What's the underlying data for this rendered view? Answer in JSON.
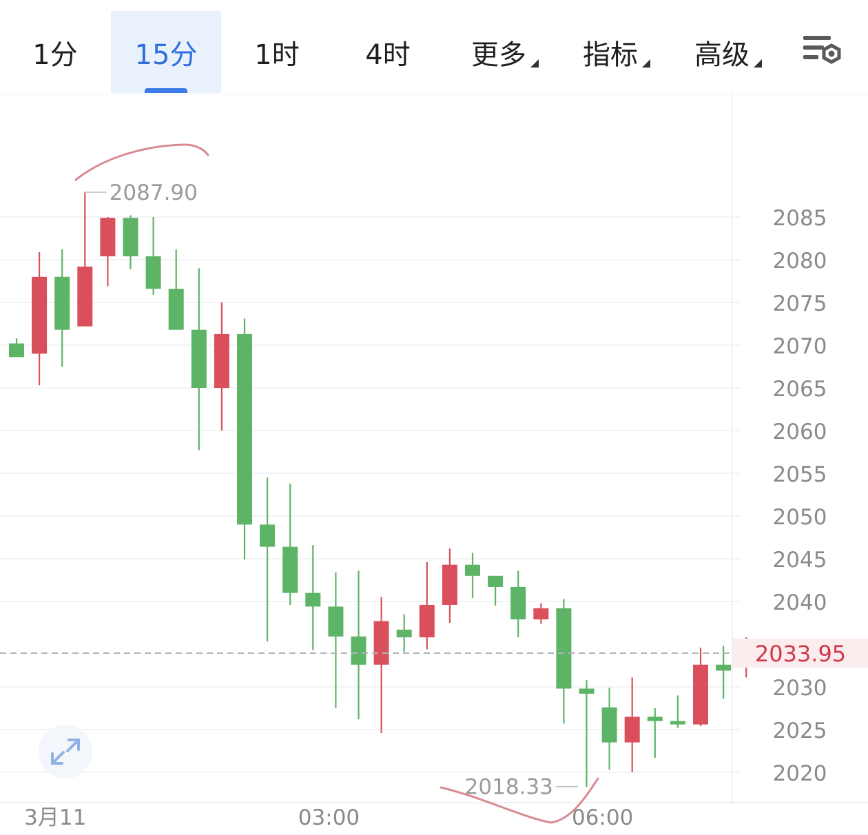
{
  "tabs": [
    {
      "label": "1分",
      "active": false,
      "has_caret": false
    },
    {
      "label": "15分",
      "active": true,
      "has_caret": false
    },
    {
      "label": "1时",
      "active": false,
      "has_caret": false
    },
    {
      "label": "4时",
      "active": false,
      "has_caret": false
    },
    {
      "label": "更多",
      "active": false,
      "has_caret": true
    },
    {
      "label": "指标",
      "active": false,
      "has_caret": true
    },
    {
      "label": "高级",
      "active": false,
      "has_caret": true
    }
  ],
  "settings_icon": "chart-settings-icon",
  "expand_icon": "expand-arrows-icon",
  "colors": {
    "up": "#d9505c",
    "down": "#5db466",
    "accent": "#2f6fdc",
    "last_price": "#d0394a",
    "annotation": "#d98a92"
  },
  "chart_data": {
    "type": "candlestick",
    "y_axis": {
      "ticks": [
        2085,
        2080,
        2075,
        2070,
        2065,
        2060,
        2055,
        2050,
        2045,
        2040,
        2030,
        2025,
        2020
      ],
      "range": [
        2016,
        2095
      ],
      "position": "right"
    },
    "x_axis": {
      "labels": [
        {
          "text": "3月11",
          "index": 1.7
        },
        {
          "text": "03:00",
          "index": 13.7
        },
        {
          "text": "06:00",
          "index": 25.7
        }
      ]
    },
    "last_price": {
      "value": 2033.95,
      "label": "2033.95"
    },
    "high_marker": {
      "value": 2087.9,
      "label": "2087.90",
      "index": 2.8
    },
    "low_marker": {
      "value": 2018.33,
      "label": "2018.33",
      "index": 24.8
    },
    "grid": true,
    "candles": [
      {
        "o": 2070.2,
        "h": 2070.8,
        "l": 2068.6,
        "c": 2068.6
      },
      {
        "o": 2069.0,
        "h": 2080.9,
        "l": 2065.3,
        "c": 2078.0
      },
      {
        "o": 2078.0,
        "h": 2081.2,
        "l": 2067.5,
        "c": 2071.8
      },
      {
        "o": 2072.2,
        "h": 2087.9,
        "l": 2072.2,
        "c": 2079.2
      },
      {
        "o": 2080.4,
        "h": 2085.0,
        "l": 2076.9,
        "c": 2084.9
      },
      {
        "o": 2084.9,
        "h": 2085.2,
        "l": 2078.9,
        "c": 2080.4
      },
      {
        "o": 2080.4,
        "h": 2085.0,
        "l": 2075.9,
        "c": 2076.6
      },
      {
        "o": 2076.6,
        "h": 2081.2,
        "l": 2071.8,
        "c": 2071.8
      },
      {
        "o": 2071.8,
        "h": 2079.0,
        "l": 2057.7,
        "c": 2065.0
      },
      {
        "o": 2065.0,
        "h": 2075.0,
        "l": 2060.0,
        "c": 2071.3
      },
      {
        "o": 2071.3,
        "h": 2073.1,
        "l": 2044.9,
        "c": 2049.0
      },
      {
        "o": 2049.0,
        "h": 2054.5,
        "l": 2035.3,
        "c": 2046.4
      },
      {
        "o": 2046.4,
        "h": 2053.8,
        "l": 2039.6,
        "c": 2041.0
      },
      {
        "o": 2041.0,
        "h": 2046.6,
        "l": 2034.3,
        "c": 2039.4
      },
      {
        "o": 2039.4,
        "h": 2043.4,
        "l": 2027.5,
        "c": 2035.9
      },
      {
        "o": 2035.9,
        "h": 2043.6,
        "l": 2026.2,
        "c": 2032.6
      },
      {
        "o": 2032.6,
        "h": 2040.5,
        "l": 2024.6,
        "c": 2037.7
      },
      {
        "o": 2036.7,
        "h": 2038.5,
        "l": 2034.1,
        "c": 2035.8
      },
      {
        "o": 2035.8,
        "h": 2044.6,
        "l": 2034.4,
        "c": 2039.6
      },
      {
        "o": 2039.6,
        "h": 2046.2,
        "l": 2037.5,
        "c": 2044.3
      },
      {
        "o": 2044.3,
        "h": 2045.7,
        "l": 2040.4,
        "c": 2043.0
      },
      {
        "o": 2043.0,
        "h": 2043.0,
        "l": 2039.5,
        "c": 2041.7
      },
      {
        "o": 2041.7,
        "h": 2043.6,
        "l": 2035.8,
        "c": 2037.9
      },
      {
        "o": 2037.9,
        "h": 2039.8,
        "l": 2037.4,
        "c": 2039.2
      },
      {
        "o": 2039.2,
        "h": 2040.3,
        "l": 2025.7,
        "c": 2029.8
      },
      {
        "o": 2029.8,
        "h": 2030.8,
        "l": 2018.3,
        "c": 2029.2
      },
      {
        "o": 2027.6,
        "h": 2029.9,
        "l": 2020.3,
        "c": 2023.5
      },
      {
        "o": 2023.5,
        "h": 2031.1,
        "l": 2020.0,
        "c": 2026.5
      },
      {
        "o": 2026.5,
        "h": 2027.5,
        "l": 2021.7,
        "c": 2026.0
      },
      {
        "o": 2026.0,
        "h": 2029.0,
        "l": 2025.2,
        "c": 2025.6
      },
      {
        "o": 2025.6,
        "h": 2034.6,
        "l": 2025.4,
        "c": 2032.6
      },
      {
        "o": 2032.6,
        "h": 2034.8,
        "l": 2028.6,
        "c": 2031.9
      },
      {
        "o": 2032.4,
        "h": 2035.8,
        "l": 2031.1,
        "c": 2033.9
      }
    ]
  }
}
